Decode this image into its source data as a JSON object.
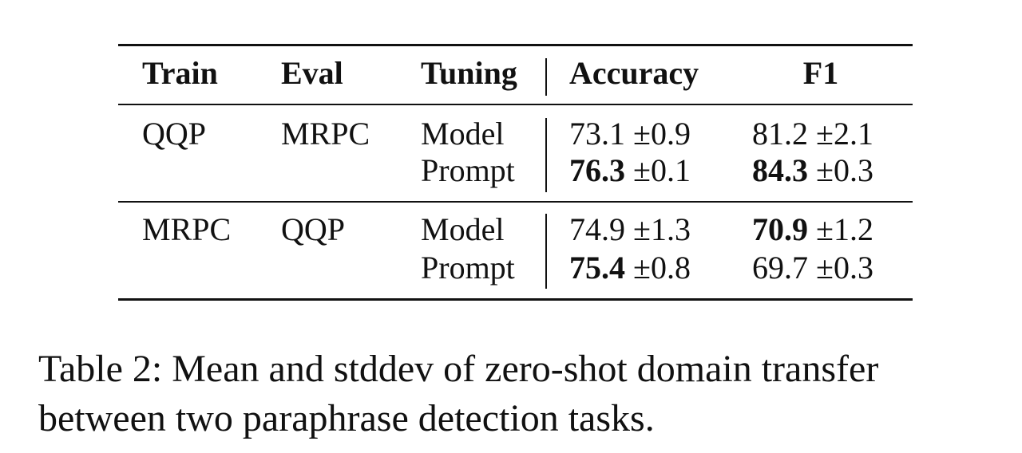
{
  "table": {
    "headers": [
      "Train",
      "Eval",
      "Tuning",
      "Accuracy",
      "F1"
    ],
    "groups": [
      {
        "train": "QQP",
        "eval": "MRPC",
        "rows": [
          {
            "tuning": "Model",
            "accuracy": {
              "mean": "73.1",
              "std": "±0.9",
              "bold": false
            },
            "f1": {
              "mean": "81.2",
              "std": "±2.1",
              "bold": false
            }
          },
          {
            "tuning": "Prompt",
            "accuracy": {
              "mean": "76.3",
              "std": "±0.1",
              "bold": true
            },
            "f1": {
              "mean": "84.3",
              "std": "±0.3",
              "bold": true
            }
          }
        ]
      },
      {
        "train": "MRPC",
        "eval": "QQP",
        "rows": [
          {
            "tuning": "Model",
            "accuracy": {
              "mean": "74.9",
              "std": "±1.3",
              "bold": false
            },
            "f1": {
              "mean": "70.9",
              "std": "±1.2",
              "bold": true
            }
          },
          {
            "tuning": "Prompt",
            "accuracy": {
              "mean": "75.4",
              "std": "±0.8",
              "bold": true
            },
            "f1": {
              "mean": "69.7",
              "std": "±0.3",
              "bold": false
            }
          }
        ]
      }
    ]
  },
  "caption": {
    "label": "Table 2:",
    "text": "Mean and stddev of zero-shot domain transfer between two paraphrase detection tasks."
  }
}
